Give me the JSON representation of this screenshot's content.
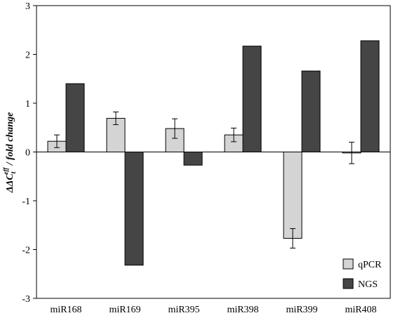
{
  "chart_data": {
    "type": "bar",
    "categories": [
      "miR168",
      "miR169",
      "miR395",
      "miR398",
      "miR399",
      "miR408"
    ],
    "series": [
      {
        "name": "qPCR",
        "color": "#d4d4d4",
        "values": [
          0.22,
          0.69,
          0.48,
          0.35,
          -1.77,
          -0.02
        ],
        "errors": [
          0.13,
          0.13,
          0.2,
          0.14,
          0.2,
          0.22
        ]
      },
      {
        "name": "NGS",
        "color": "#454545",
        "values": [
          1.4,
          -2.32,
          -0.27,
          2.17,
          1.66,
          2.28
        ],
        "errors": null
      }
    ],
    "ylabel": "ΔΔCT / fold change",
    "ylabel_parts": {
      "main": "ΔΔC",
      "sup": "eff",
      "sub": "t",
      "rest": " / fold change"
    },
    "ylim": [
      -3,
      3
    ],
    "yticks": [
      -3,
      -2,
      -1,
      0,
      1,
      2,
      3
    ],
    "legend_position": "bottom-right",
    "grid": false
  }
}
